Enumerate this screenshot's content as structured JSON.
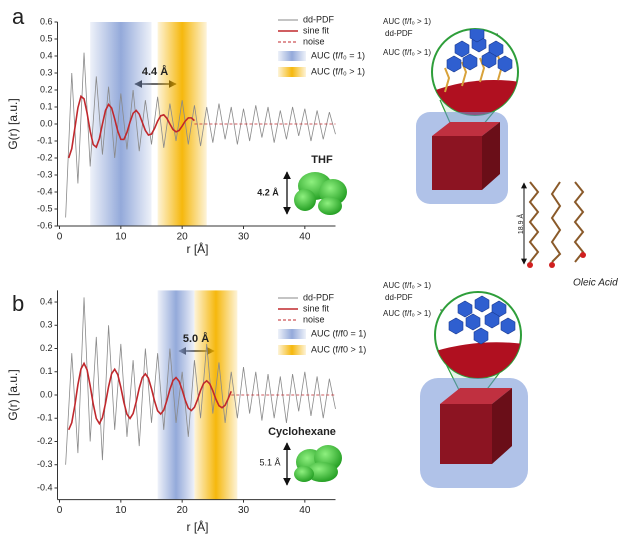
{
  "chart_data": [
    {
      "type": "line",
      "panel": "a",
      "xlabel": "r [Å]",
      "ylabel": "G(r) [a.u.]",
      "xlim": [
        0,
        45
      ],
      "xticks": [
        0,
        10,
        20,
        30,
        40
      ],
      "ylim": [
        -0.6,
        0.6
      ],
      "yticks": [
        -0.6,
        -0.5,
        -0.4,
        -0.3,
        -0.2,
        -0.1,
        {
          "value": 0,
          "label": "0.0"
        },
        0.1,
        0.2,
        0.3,
        0.4,
        0.5,
        0.6
      ],
      "bands": [
        {
          "name": "AUC (f/f₀ = 1)",
          "color": "#8ea5d8",
          "range": [
            5,
            15
          ]
        },
        {
          "name": "AUC (f/f₀ > 1)",
          "color": "#f5b400",
          "range": [
            16,
            24
          ]
        }
      ],
      "series": [
        {
          "name": "dd-PDF",
          "color": "#8a8a8a",
          "dash": false,
          "x": [
            1,
            2,
            3,
            4,
            5,
            6,
            7,
            8,
            9,
            10,
            11,
            12,
            13,
            14,
            15,
            16,
            17,
            18,
            19,
            20,
            21,
            22,
            23,
            24,
            25,
            26,
            27,
            28,
            29,
            30,
            31,
            32,
            33,
            34,
            35,
            36,
            37,
            38,
            39,
            40,
            41,
            42,
            43,
            44,
            45
          ],
          "values": [
            -0.55,
            0.3,
            -0.35,
            0.42,
            -0.25,
            0.28,
            -0.18,
            0.22,
            -0.2,
            0.18,
            -0.15,
            0.2,
            -0.16,
            0.14,
            -0.12,
            0.16,
            -0.14,
            0.12,
            -0.1,
            0.14,
            -0.12,
            0.11,
            -0.13,
            0.1,
            -0.11,
            0.12,
            -0.09,
            0.1,
            -0.12,
            0.09,
            -0.1,
            0.11,
            -0.08,
            0.1,
            -0.11,
            0.08,
            -0.09,
            0.1,
            -0.07,
            0.09,
            -0.1,
            0.08,
            -0.09,
            0.07,
            -0.06
          ]
        },
        {
          "name": "sine fit",
          "color": "#c0282d",
          "dash": false,
          "x": [
            1.5,
            2,
            2.5,
            3,
            3.5,
            4,
            4.5,
            5,
            5.5,
            6,
            6.5,
            7,
            7.5,
            8,
            8.5,
            9,
            9.5,
            10,
            10.5,
            11,
            11.5,
            12,
            12.5,
            13,
            13.5,
            14,
            14.5,
            15,
            15.5,
            16,
            16.5,
            17,
            17.5,
            18,
            18.5,
            19,
            19.5,
            20,
            20.5,
            21,
            21.5,
            22
          ],
          "values": [
            -0.2,
            -0.145,
            -0.026,
            0.095,
            0.163,
            0.148,
            0.064,
            -0.042,
            -0.121,
            -0.136,
            -0.086,
            0,
            0.08,
            0.115,
            0.094,
            0.03,
            -0.042,
            -0.09,
            -0.091,
            -0.049,
            0.012,
            0.063,
            0.08,
            0.058,
            0.01,
            -0.038,
            -0.065,
            -0.059,
            -0.026,
            0.017,
            0.048,
            0.054,
            0.034,
            0,
            -0.032,
            -0.046,
            -0.038,
            -0.012,
            0.017,
            0.036,
            0.036,
            0.02
          ]
        },
        {
          "name": "noise",
          "color": "#c0282d",
          "dash": true,
          "x": [
            22,
            45
          ],
          "values": [
            0,
            0
          ]
        }
      ],
      "annotations": [
        "4.4 Å",
        "THF",
        "4.2 Å"
      ],
      "illustration_labels": [
        "AUC (f/f₀ > 1)",
        "dd-PDF",
        "AUC (f/f₀ > 1)",
        "18.9 Å",
        "Oleic Acid"
      ]
    },
    {
      "type": "line",
      "panel": "b",
      "xlabel": "r [Å]",
      "ylabel": "G(r) [a.u.]",
      "xlim": [
        0,
        45
      ],
      "xticks": [
        0,
        10,
        20,
        30,
        40
      ],
      "ylim": [
        -0.45,
        0.45
      ],
      "yticks": [
        -0.4,
        -0.3,
        -0.2,
        -0.1,
        {
          "value": 0,
          "label": "0.0"
        },
        0.1,
        0.2,
        0.3,
        0.4
      ],
      "bands": [
        {
          "name": "AUC (f/f0 = 1)",
          "color": "#8ea5d8",
          "range": [
            16,
            22
          ]
        },
        {
          "name": "AUC (f/f0 > 1)",
          "color": "#f5b400",
          "range": [
            22,
            29
          ]
        }
      ],
      "series": [
        {
          "name": "dd-PDF",
          "color": "#8a8a8a",
          "dash": false,
          "x": [
            1,
            2,
            3,
            4,
            5,
            6,
            7,
            8,
            9,
            10,
            11,
            12,
            13,
            14,
            15,
            16,
            17,
            18,
            19,
            20,
            21,
            22,
            23,
            24,
            25,
            26,
            27,
            28,
            29,
            30,
            31,
            32,
            33,
            34,
            35,
            36,
            37,
            38,
            39,
            40,
            41,
            42,
            43,
            44,
            45
          ],
          "values": [
            -0.3,
            0.18,
            -0.25,
            0.42,
            -0.2,
            0.25,
            -0.28,
            0.3,
            -0.15,
            0.22,
            -0.18,
            0.15,
            -0.22,
            0.2,
            -0.12,
            0.18,
            -0.15,
            0.2,
            -0.12,
            0.1,
            -0.18,
            0.15,
            -0.1,
            0.22,
            -0.08,
            0.14,
            -0.12,
            0.1,
            -0.1,
            0.12,
            -0.08,
            0.1,
            -0.11,
            0.09,
            -0.1,
            0.08,
            -0.12,
            0.09,
            -0.07,
            0.1,
            -0.09,
            0.08,
            -0.1,
            0.07,
            -0.06
          ]
        },
        {
          "name": "sine fit",
          "color": "#c0282d",
          "dash": false,
          "x": [
            1.5,
            2,
            2.5,
            3,
            3.5,
            4,
            4.5,
            5,
            5.5,
            6,
            6.5,
            7,
            7.5,
            8,
            8.5,
            9,
            9.5,
            10,
            10.5,
            11,
            11.5,
            12,
            12.5,
            13,
            13.5,
            14,
            14.5,
            15,
            15.5,
            16,
            16.5,
            17,
            17.5,
            18,
            18.5,
            19,
            19.5,
            20,
            20.5,
            21,
            21.5,
            22,
            22.5,
            23,
            23.5,
            24,
            24.5,
            25,
            25.5,
            26,
            26.5,
            27,
            27.5,
            28
          ],
          "values": [
            -0.15,
            -0.119,
            -0.045,
            0.044,
            0.112,
            0.136,
            0.108,
            0.04,
            -0.039,
            -0.101,
            -0.123,
            -0.097,
            -0.036,
            0.036,
            0.092,
            0.111,
            0.088,
            0.033,
            -0.032,
            -0.083,
            -0.101,
            -0.08,
            -0.03,
            0.029,
            0.075,
            0.091,
            0.072,
            0.027,
            -0.026,
            -0.068,
            -0.082,
            -0.065,
            -0.024,
            0.024,
            0.062,
            0.075,
            0.059,
            0.022,
            -0.022,
            -0.056,
            -0.067,
            -0.053,
            -0.02,
            0.02,
            0.05,
            0.061,
            0.048,
            0.018,
            -0.018,
            -0.046,
            -0.055,
            -0.044,
            -0.016,
            0.016
          ]
        },
        {
          "name": "noise",
          "color": "#c0282d",
          "dash": true,
          "x": [
            28,
            45
          ],
          "values": [
            0,
            0
          ]
        }
      ],
      "annotations": [
        "5.0 Å",
        "Cyclohexane",
        "5.1 Å"
      ],
      "illustration_labels": [
        "AUC (f/f₀ > 1)",
        "dd-PDF",
        "AUC (f/f₀ > 1)"
      ]
    }
  ]
}
